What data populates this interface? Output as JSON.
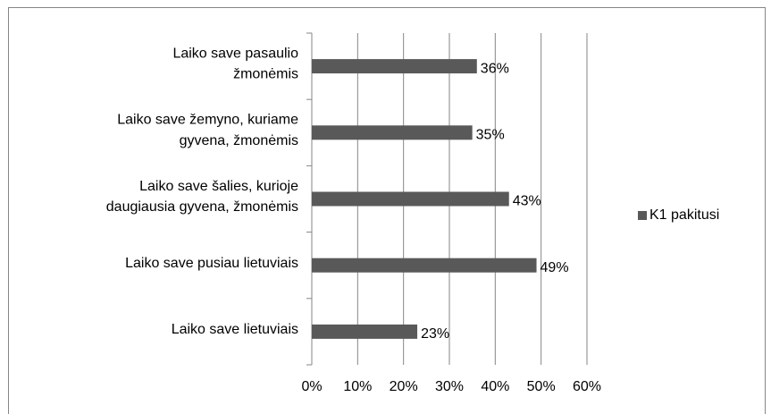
{
  "chart_data": {
    "type": "barh",
    "categories": [
      "Laiko save pasaulio\nžmonėmis",
      "Laiko save žemyno, kuriame\ngyvena, žmonėmis",
      "Laiko save šalies, kurioje\ndaugiausia gyvena, žmonėmis",
      "Laiko save pusiau lietuviais",
      "Laiko save lietuviais"
    ],
    "series": [
      {
        "name": "K1 pakitusi",
        "color": "#595959",
        "values": [
          36,
          35,
          43,
          49,
          23
        ],
        "value_labels": [
          "36%",
          "35%",
          "43%",
          "49%",
          "23%"
        ]
      }
    ],
    "xlim": [
      0,
      60
    ],
    "xticks": [
      {
        "value": 0,
        "label": "0%"
      },
      {
        "value": 10,
        "label": "10%"
      },
      {
        "value": 20,
        "label": "20%"
      },
      {
        "value": 30,
        "label": "30%"
      },
      {
        "value": 40,
        "label": "40%"
      },
      {
        "value": 50,
        "label": "50%"
      },
      {
        "value": 60,
        "label": "60%"
      }
    ],
    "grid": true,
    "legend": "right"
  }
}
